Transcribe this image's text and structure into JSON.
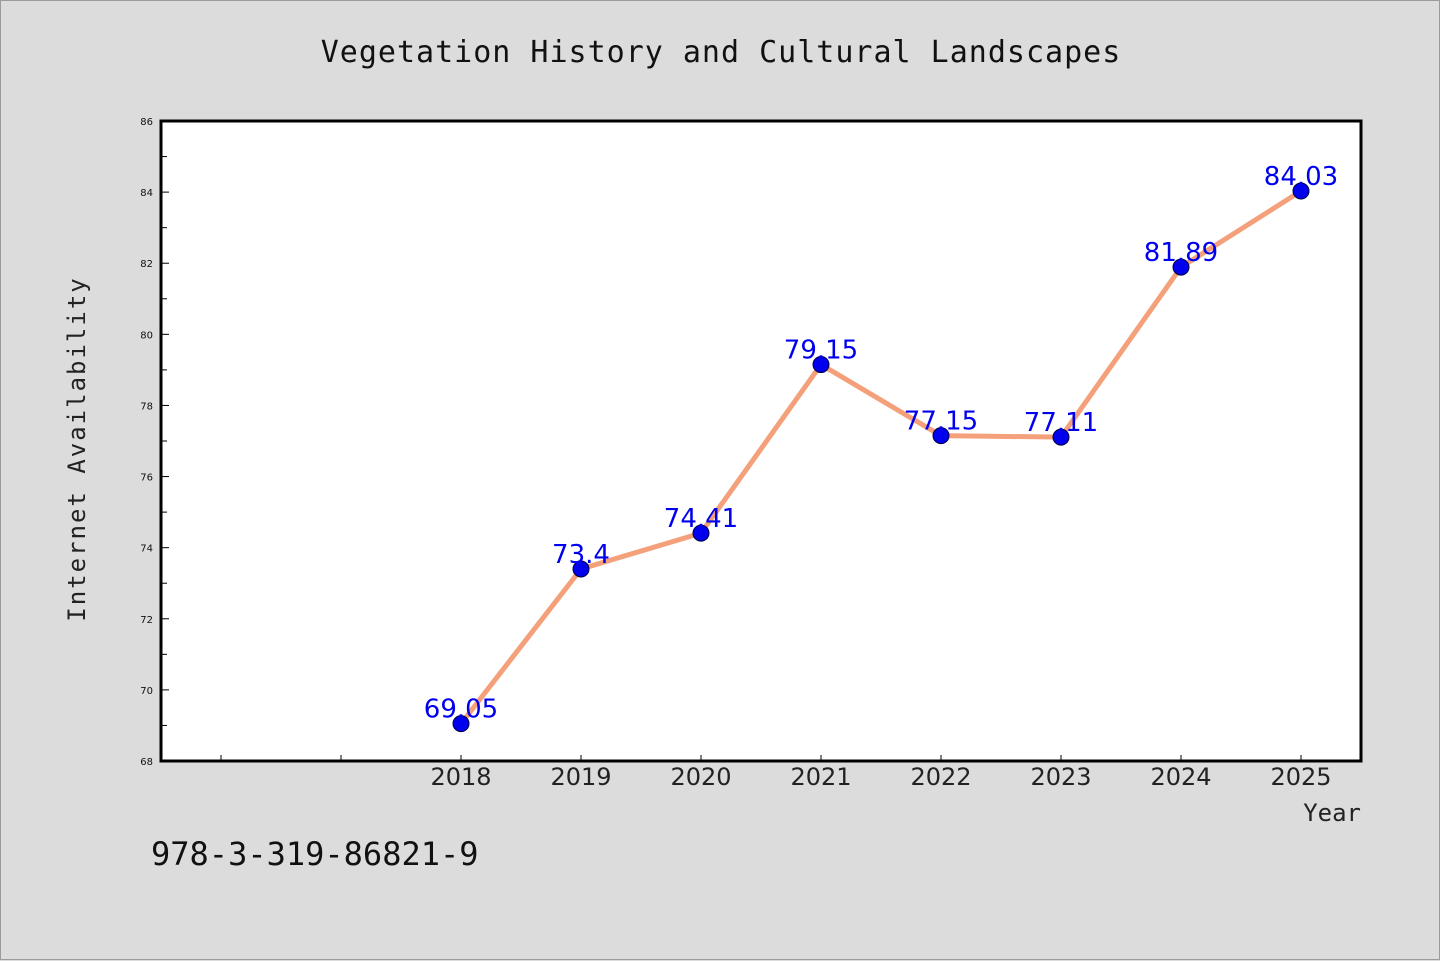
{
  "chart_data": {
    "type": "line",
    "title": "Vegetation History and Cultural Landscapes",
    "xlabel": "Year",
    "ylabel": "Internet Availability",
    "x": [
      "2018",
      "2019",
      "2020",
      "2021",
      "2022",
      "2023",
      "2024",
      "2025"
    ],
    "series": [
      {
        "values": [
          69.05,
          73.4,
          74.41,
          79.15,
          77.15,
          77.11,
          81.89,
          84.03
        ]
      }
    ],
    "data_labels": [
      "69.05",
      "73.4",
      "74.41",
      "79.15",
      "77.15",
      "77.11",
      "81.89",
      "84.03"
    ],
    "ylim": [
      68,
      86
    ],
    "yticks": [
      "68",
      "70",
      "72",
      "74",
      "76",
      "78",
      "80",
      "82",
      "84",
      "86"
    ],
    "x_leading_empty_slots": 2,
    "grid": false,
    "colors": {
      "line": "#f4a07a",
      "marker": "#0000ee",
      "label": "#0000ee",
      "plot_bg": "#ffffff",
      "page_bg": "#dcdcdc"
    }
  },
  "footer": {
    "id_text": "978-3-319-86821-9"
  }
}
